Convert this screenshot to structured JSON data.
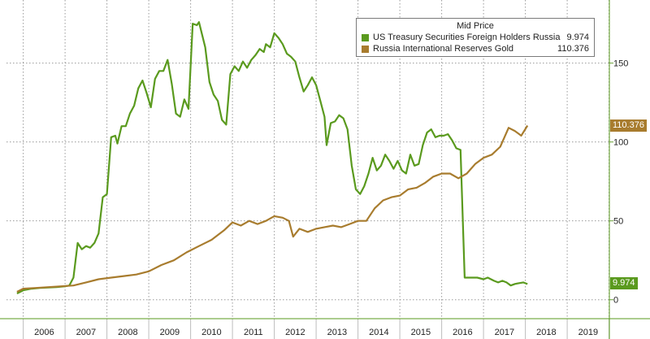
{
  "chart_data": {
    "type": "line",
    "title": "",
    "xlabel": "",
    "ylabel": "",
    "x_tick_labels": [
      "2006",
      "2007",
      "2008",
      "2009",
      "2010",
      "2011",
      "2012",
      "2013",
      "2014",
      "2015",
      "2016",
      "2017",
      "2018",
      "2019"
    ],
    "y_ticks": [
      0,
      50,
      100,
      150
    ],
    "ylim": [
      -12,
      190
    ],
    "grid": true,
    "legend_title": "Mid Price",
    "legend_position": "top-right",
    "series": [
      {
        "name": "US Treasury Securities Foreign Holders Russia",
        "last_value": "9.974",
        "color": "#5a9a1e",
        "points": [
          [
            2005.85,
            4
          ],
          [
            2006.0,
            6
          ],
          [
            2006.2,
            7
          ],
          [
            2006.4,
            7.5
          ],
          [
            2006.6,
            7.8
          ],
          [
            2006.8,
            8
          ],
          [
            2007.0,
            8.5
          ],
          [
            2007.1,
            9
          ],
          [
            2007.2,
            14
          ],
          [
            2007.3,
            36
          ],
          [
            2007.4,
            32
          ],
          [
            2007.5,
            34
          ],
          [
            2007.6,
            33
          ],
          [
            2007.7,
            36
          ],
          [
            2007.8,
            42
          ],
          [
            2007.9,
            65
          ],
          [
            2008.0,
            67
          ],
          [
            2008.1,
            103
          ],
          [
            2008.2,
            104
          ],
          [
            2008.25,
            99
          ],
          [
            2008.35,
            110
          ],
          [
            2008.45,
            110
          ],
          [
            2008.55,
            118
          ],
          [
            2008.65,
            123
          ],
          [
            2008.75,
            134
          ],
          [
            2008.85,
            139
          ],
          [
            2008.95,
            131
          ],
          [
            2009.05,
            122
          ],
          [
            2009.15,
            140
          ],
          [
            2009.25,
            145
          ],
          [
            2009.35,
            145
          ],
          [
            2009.45,
            152
          ],
          [
            2009.55,
            137
          ],
          [
            2009.65,
            118
          ],
          [
            2009.75,
            116
          ],
          [
            2009.85,
            127
          ],
          [
            2009.95,
            121
          ],
          [
            2010.05,
            175
          ],
          [
            2010.15,
            174
          ],
          [
            2010.2,
            176
          ],
          [
            2010.35,
            160
          ],
          [
            2010.45,
            138
          ],
          [
            2010.55,
            130
          ],
          [
            2010.65,
            126
          ],
          [
            2010.75,
            114
          ],
          [
            2010.85,
            111
          ],
          [
            2010.95,
            143
          ],
          [
            2011.05,
            148
          ],
          [
            2011.15,
            145
          ],
          [
            2011.25,
            151
          ],
          [
            2011.35,
            147
          ],
          [
            2011.45,
            152
          ],
          [
            2011.55,
            155
          ],
          [
            2011.65,
            159
          ],
          [
            2011.75,
            157
          ],
          [
            2011.8,
            162
          ],
          [
            2011.9,
            160
          ],
          [
            2012.0,
            169
          ],
          [
            2012.1,
            166
          ],
          [
            2012.2,
            162
          ],
          [
            2012.3,
            156
          ],
          [
            2012.4,
            154
          ],
          [
            2012.5,
            151
          ],
          [
            2012.6,
            141
          ],
          [
            2012.7,
            132
          ],
          [
            2012.8,
            136
          ],
          [
            2012.9,
            141
          ],
          [
            2013.0,
            136
          ],
          [
            2013.1,
            126
          ],
          [
            2013.2,
            116
          ],
          [
            2013.25,
            98
          ],
          [
            2013.35,
            112
          ],
          [
            2013.45,
            113
          ],
          [
            2013.55,
            117
          ],
          [
            2013.65,
            115
          ],
          [
            2013.75,
            108
          ],
          [
            2013.85,
            85
          ],
          [
            2013.95,
            70
          ],
          [
            2014.05,
            67
          ],
          [
            2014.15,
            72
          ],
          [
            2014.25,
            80
          ],
          [
            2014.35,
            90
          ],
          [
            2014.45,
            82
          ],
          [
            2014.55,
            85
          ],
          [
            2014.65,
            92
          ],
          [
            2014.75,
            88
          ],
          [
            2014.85,
            83
          ],
          [
            2014.95,
            88
          ],
          [
            2015.05,
            82
          ],
          [
            2015.15,
            80
          ],
          [
            2015.25,
            92
          ],
          [
            2015.35,
            85
          ],
          [
            2015.45,
            86
          ],
          [
            2015.55,
            98
          ],
          [
            2015.65,
            106
          ],
          [
            2015.75,
            108
          ],
          [
            2015.85,
            103
          ],
          [
            2015.95,
            104
          ],
          [
            2016.05,
            104
          ],
          [
            2016.15,
            105
          ],
          [
            2016.25,
            101
          ],
          [
            2016.35,
            96
          ],
          [
            2016.45,
            95
          ],
          [
            2016.55,
            14
          ],
          [
            2016.7,
            14
          ],
          [
            2016.85,
            14
          ],
          [
            2017.0,
            13
          ],
          [
            2017.1,
            14
          ],
          [
            2017.25,
            12
          ],
          [
            2017.35,
            11
          ],
          [
            2017.45,
            12
          ],
          [
            2017.55,
            11
          ],
          [
            2017.65,
            9
          ],
          [
            2017.75,
            10
          ],
          [
            2017.85,
            10.5
          ],
          [
            2017.95,
            11
          ],
          [
            2018.05,
            9.974
          ]
        ]
      },
      {
        "name": "Russia International Reserves Gold",
        "last_value": "110.376",
        "color": "#a87c2e",
        "points": [
          [
            2005.85,
            5
          ],
          [
            2006.0,
            7
          ],
          [
            2006.3,
            7.5
          ],
          [
            2006.6,
            8
          ],
          [
            2006.9,
            8.5
          ],
          [
            2007.2,
            9
          ],
          [
            2007.5,
            11
          ],
          [
            2007.8,
            13
          ],
          [
            2008.1,
            14
          ],
          [
            2008.4,
            15
          ],
          [
            2008.7,
            16
          ],
          [
            2009.0,
            18
          ],
          [
            2009.3,
            22
          ],
          [
            2009.6,
            25
          ],
          [
            2009.9,
            30
          ],
          [
            2010.2,
            34
          ],
          [
            2010.5,
            38
          ],
          [
            2010.8,
            44
          ],
          [
            2011.0,
            49
          ],
          [
            2011.2,
            47
          ],
          [
            2011.4,
            50
          ],
          [
            2011.6,
            48
          ],
          [
            2011.8,
            50
          ],
          [
            2012.0,
            53
          ],
          [
            2012.2,
            52
          ],
          [
            2012.35,
            50
          ],
          [
            2012.45,
            40
          ],
          [
            2012.6,
            45
          ],
          [
            2012.8,
            43
          ],
          [
            2013.0,
            45
          ],
          [
            2013.2,
            46
          ],
          [
            2013.4,
            47
          ],
          [
            2013.6,
            46
          ],
          [
            2013.8,
            48
          ],
          [
            2014.0,
            50
          ],
          [
            2014.2,
            50
          ],
          [
            2014.4,
            58
          ],
          [
            2014.6,
            63
          ],
          [
            2014.8,
            65
          ],
          [
            2015.0,
            66
          ],
          [
            2015.2,
            70
          ],
          [
            2015.4,
            71
          ],
          [
            2015.6,
            74
          ],
          [
            2015.8,
            78
          ],
          [
            2016.0,
            80
          ],
          [
            2016.2,
            80
          ],
          [
            2016.4,
            77
          ],
          [
            2016.6,
            80
          ],
          [
            2016.8,
            86
          ],
          [
            2017.0,
            90
          ],
          [
            2017.2,
            92
          ],
          [
            2017.4,
            97
          ],
          [
            2017.6,
            109
          ],
          [
            2017.75,
            107
          ],
          [
            2017.9,
            104
          ],
          [
            2018.05,
            110.376
          ]
        ]
      }
    ]
  }
}
